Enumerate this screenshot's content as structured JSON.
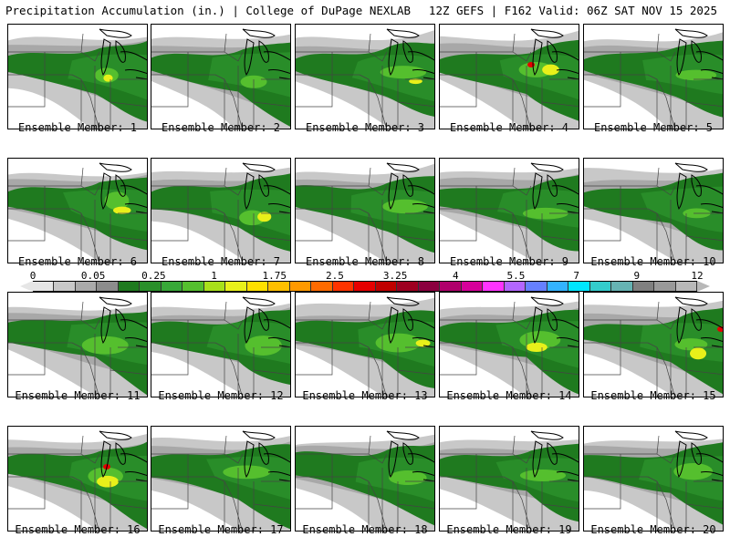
{
  "header": {
    "left": "Precipitation Accumulation (in.) | College of DuPage NEXLAB",
    "right": "12Z GEFS | F162 Valid: 06Z SAT NOV 15 2025"
  },
  "colorbar": {
    "tick_labels": [
      "0",
      "0.05",
      "0.25",
      "1",
      "1.75",
      "2.5",
      "3.25",
      "4",
      "5.5",
      "7",
      "9",
      "12"
    ],
    "colors": [
      "#e6e6e6",
      "#c8c8c8",
      "#aaaaaa",
      "#8c8c8c",
      "#1f7a1f",
      "#2a8f2a",
      "#38a838",
      "#55bf2e",
      "#a8e01a",
      "#e8f01a",
      "#ffe000",
      "#ffbf00",
      "#ff9900",
      "#ff6a00",
      "#ff3300",
      "#e60000",
      "#c00000",
      "#9e0020",
      "#8b003f",
      "#b0006b",
      "#d6009a",
      "#ff33ff",
      "#b366ff",
      "#6680ff",
      "#33b3ff",
      "#00e6ff",
      "#33cccc",
      "#66b3b3",
      "#808080",
      "#999999",
      "#b8b8b8"
    ]
  },
  "panels": [
    {
      "label": "Ensemble Member: 1"
    },
    {
      "label": "Ensemble Member: 2"
    },
    {
      "label": "Ensemble Member: 3"
    },
    {
      "label": "Ensemble Member: 4"
    },
    {
      "label": "Ensemble Member: 5"
    },
    {
      "label": "Ensemble Member: 6"
    },
    {
      "label": "Ensemble Member: 7"
    },
    {
      "label": "Ensemble Member: 8"
    },
    {
      "label": "Ensemble Member: 9"
    },
    {
      "label": "Ensemble Member: 10"
    },
    {
      "label": "Ensemble Member: 11"
    },
    {
      "label": "Ensemble Member: 12"
    },
    {
      "label": "Ensemble Member: 13"
    },
    {
      "label": "Ensemble Member: 14"
    },
    {
      "label": "Ensemble Member: 15"
    },
    {
      "label": "Ensemble Member: 16"
    },
    {
      "label": "Ensemble Member: 17"
    },
    {
      "label": "Ensemble Member: 18"
    },
    {
      "label": "Ensemble Member: 19"
    },
    {
      "label": "Ensemble Member: 20"
    }
  ]
}
